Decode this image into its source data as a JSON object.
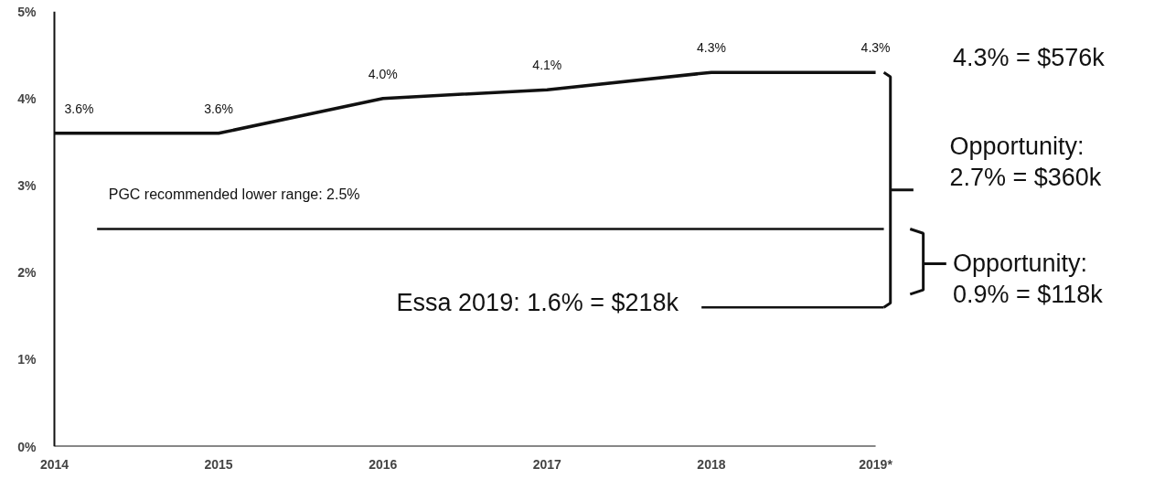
{
  "chart_data": {
    "type": "line",
    "categories": [
      "2014",
      "2015",
      "2016",
      "2017",
      "2018",
      "2019*"
    ],
    "series": [
      {
        "color": "#111111",
        "values": [
          3.6,
          3.6,
          4.0,
          4.1,
          4.3,
          4.3
        ],
        "value_labels": [
          "3.6%",
          "3.6%",
          "4.0%",
          "4.1%",
          "4.3%",
          "4.3%"
        ]
      }
    ],
    "ylim": [
      0,
      5
    ],
    "yticks": [
      {
        "value": 0,
        "label": "0%"
      },
      {
        "value": 1,
        "label": "1%"
      },
      {
        "value": 2,
        "label": "2%"
      },
      {
        "value": 3,
        "label": "3%"
      },
      {
        "value": 4,
        "label": "4%"
      },
      {
        "value": 5,
        "label": "5%"
      }
    ],
    "ref_lines": [
      {
        "axis": "y",
        "value": 2.5,
        "label": "PGC recommended lower range: 2.5%",
        "color": "#111111"
      },
      {
        "axis": "y",
        "value": 1.6,
        "label": "Essa 2019: 1.6% = $218k",
        "color": "#111111"
      }
    ],
    "annotations": [
      "4.3% = $576k",
      "Opportunity:\n2.7% = $360k",
      "Opportunity:\n0.9% = $118k"
    ],
    "grid": false,
    "marker": "none",
    "line_style": "solid"
  }
}
